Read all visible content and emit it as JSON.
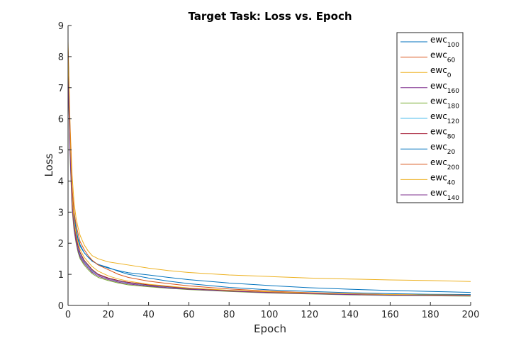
{
  "chart_data": {
    "type": "line",
    "title": "Target Task: Loss vs. Epoch",
    "xlabel": "Epoch",
    "ylabel": "Loss",
    "xlim": [
      0,
      200
    ],
    "ylim": [
      0,
      9
    ],
    "xticks": [
      0,
      20,
      40,
      60,
      80,
      100,
      120,
      140,
      160,
      180,
      200
    ],
    "yticks": [
      0,
      1,
      2,
      3,
      4,
      5,
      6,
      7,
      8,
      9
    ],
    "grid": false,
    "legend_position": "top-right",
    "x": [
      0,
      1,
      2,
      3,
      4,
      5,
      6,
      8,
      10,
      12,
      15,
      20,
      25,
      30,
      40,
      50,
      60,
      80,
      100,
      120,
      140,
      160,
      180,
      200
    ],
    "series": [
      {
        "name_base": "ewc",
        "name_sub": "100",
        "color": "#0072BD",
        "values": [
          8.0,
          5.6,
          3.6,
          2.9,
          2.4,
          2.1,
          1.9,
          1.7,
          1.55,
          1.45,
          1.3,
          1.2,
          1.12,
          1.05,
          0.98,
          0.9,
          0.83,
          0.72,
          0.64,
          0.57,
          0.52,
          0.48,
          0.45,
          0.42
        ]
      },
      {
        "name_base": "ewc",
        "name_sub": "60",
        "color": "#D95319",
        "values": [
          7.8,
          5.2,
          3.4,
          2.6,
          2.2,
          1.9,
          1.7,
          1.45,
          1.3,
          1.15,
          1.0,
          0.88,
          0.8,
          0.74,
          0.66,
          0.6,
          0.55,
          0.48,
          0.43,
          0.39,
          0.36,
          0.34,
          0.32,
          0.31
        ]
      },
      {
        "name_base": "ewc",
        "name_sub": "0",
        "color": "#EDB120",
        "values": [
          8.5,
          5.8,
          4.2,
          3.3,
          2.8,
          2.5,
          2.25,
          1.95,
          1.75,
          1.6,
          1.5,
          1.4,
          1.35,
          1.3,
          1.2,
          1.12,
          1.06,
          0.98,
          0.93,
          0.88,
          0.85,
          0.82,
          0.8,
          0.77
        ]
      },
      {
        "name_base": "ewc",
        "name_sub": "160",
        "color": "#7E2F8E",
        "values": [
          7.6,
          5.0,
          3.3,
          2.5,
          2.1,
          1.8,
          1.6,
          1.4,
          1.25,
          1.1,
          0.98,
          0.86,
          0.78,
          0.72,
          0.64,
          0.58,
          0.53,
          0.46,
          0.41,
          0.38,
          0.35,
          0.33,
          0.32,
          0.31
        ]
      },
      {
        "name_base": "ewc",
        "name_sub": "180",
        "color": "#77AC30",
        "values": [
          7.5,
          4.8,
          3.1,
          2.4,
          2.0,
          1.7,
          1.5,
          1.3,
          1.15,
          1.02,
          0.9,
          0.8,
          0.72,
          0.66,
          0.6,
          0.55,
          0.51,
          0.45,
          0.4,
          0.37,
          0.34,
          0.32,
          0.31,
          0.3
        ]
      },
      {
        "name_base": "ewc",
        "name_sub": "120",
        "color": "#4DBEEE",
        "values": [
          7.7,
          5.1,
          3.3,
          2.55,
          2.15,
          1.85,
          1.65,
          1.42,
          1.27,
          1.12,
          0.99,
          0.87,
          0.79,
          0.73,
          0.65,
          0.59,
          0.54,
          0.47,
          0.42,
          0.38,
          0.35,
          0.33,
          0.32,
          0.31
        ]
      },
      {
        "name_base": "ewc",
        "name_sub": "80",
        "color": "#A2142F",
        "values": [
          7.9,
          5.3,
          3.45,
          2.65,
          2.2,
          1.9,
          1.7,
          1.45,
          1.3,
          1.15,
          1.0,
          0.88,
          0.8,
          0.74,
          0.66,
          0.6,
          0.55,
          0.48,
          0.43,
          0.39,
          0.36,
          0.34,
          0.33,
          0.32
        ]
      },
      {
        "name_base": "ewc",
        "name_sub": "20",
        "color": "#0072BD",
        "values": [
          8.2,
          5.5,
          3.7,
          2.9,
          2.45,
          2.15,
          1.95,
          1.7,
          1.55,
          1.42,
          1.32,
          1.22,
          1.1,
          1.0,
          0.88,
          0.78,
          0.7,
          0.58,
          0.5,
          0.45,
          0.41,
          0.38,
          0.36,
          0.35
        ]
      },
      {
        "name_base": "ewc",
        "name_sub": "200",
        "color": "#D95319",
        "values": [
          8.3,
          5.7,
          3.8,
          3.0,
          2.6,
          2.3,
          2.05,
          1.8,
          1.6,
          1.45,
          1.3,
          1.15,
          1.0,
          0.9,
          0.78,
          0.7,
          0.63,
          0.53,
          0.46,
          0.41,
          0.38,
          0.35,
          0.34,
          0.33
        ]
      },
      {
        "name_base": "ewc",
        "name_sub": "40",
        "color": "#EDB120",
        "values": [
          8.1,
          5.4,
          3.5,
          2.7,
          2.3,
          2.0,
          1.8,
          1.55,
          1.4,
          1.25,
          1.1,
          0.95,
          0.85,
          0.78,
          0.68,
          0.62,
          0.56,
          0.49,
          0.44,
          0.4,
          0.37,
          0.35,
          0.34,
          0.33
        ]
      },
      {
        "name_base": "ewc",
        "name_sub": "140",
        "color": "#7E2F8E",
        "values": [
          7.4,
          4.9,
          3.2,
          2.45,
          2.05,
          1.75,
          1.55,
          1.35,
          1.2,
          1.06,
          0.94,
          0.83,
          0.75,
          0.69,
          0.62,
          0.56,
          0.52,
          0.46,
          0.41,
          0.38,
          0.35,
          0.33,
          0.32,
          0.31
        ]
      }
    ]
  }
}
